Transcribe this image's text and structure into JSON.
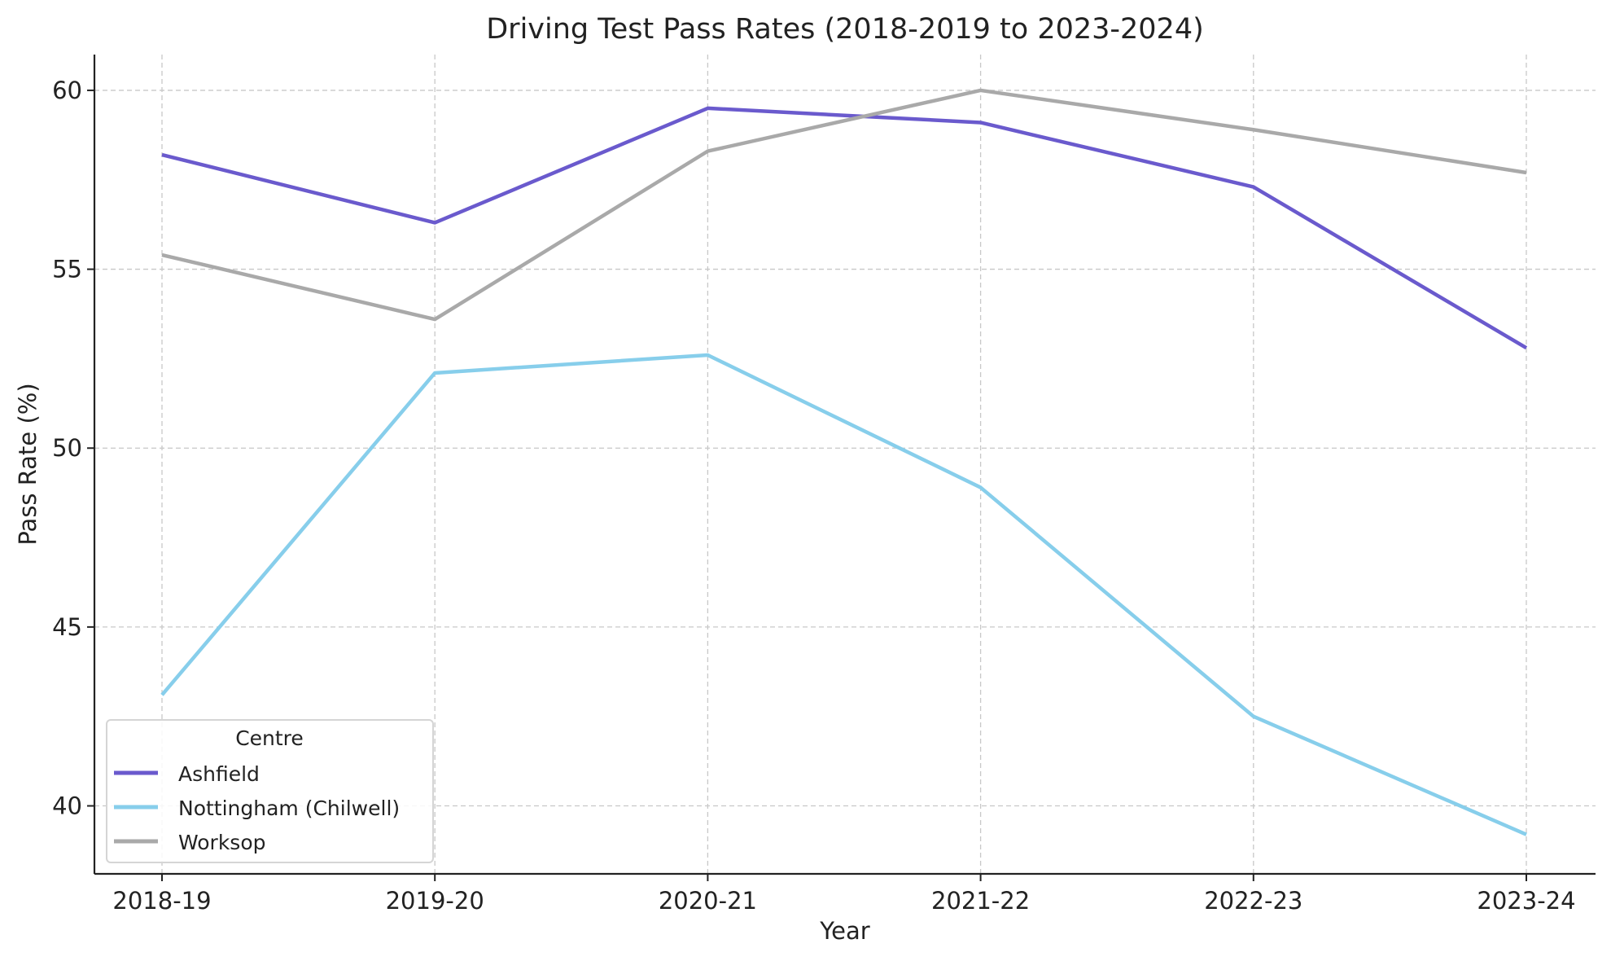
{
  "chart_data": {
    "type": "line",
    "title": "Driving Test Pass Rates (2018-2019 to 2023-2024)",
    "xlabel": "Year",
    "ylabel": "Pass Rate (%)",
    "categories": [
      "2018-19",
      "2019-20",
      "2020-21",
      "2021-22",
      "2022-23",
      "2023-24"
    ],
    "yticks": [
      40,
      45,
      50,
      55,
      60
    ],
    "ylim": [
      38.1,
      61.0
    ],
    "grid": true,
    "legend": {
      "title": "Centre",
      "placement": "lower-left"
    },
    "series": [
      {
        "name": "Ashfield",
        "color": "#6a5acd",
        "values": [
          58.2,
          56.3,
          59.5,
          59.1,
          57.3,
          52.8
        ]
      },
      {
        "name": "Nottingham (Chilwell)",
        "color": "#87ceeb",
        "values": [
          43.1,
          52.1,
          52.6,
          48.9,
          42.5,
          39.2
        ]
      },
      {
        "name": "Worksop",
        "color": "#a9a9a9",
        "values": [
          55.4,
          53.6,
          58.3,
          60.0,
          58.9,
          57.7
        ]
      }
    ]
  }
}
